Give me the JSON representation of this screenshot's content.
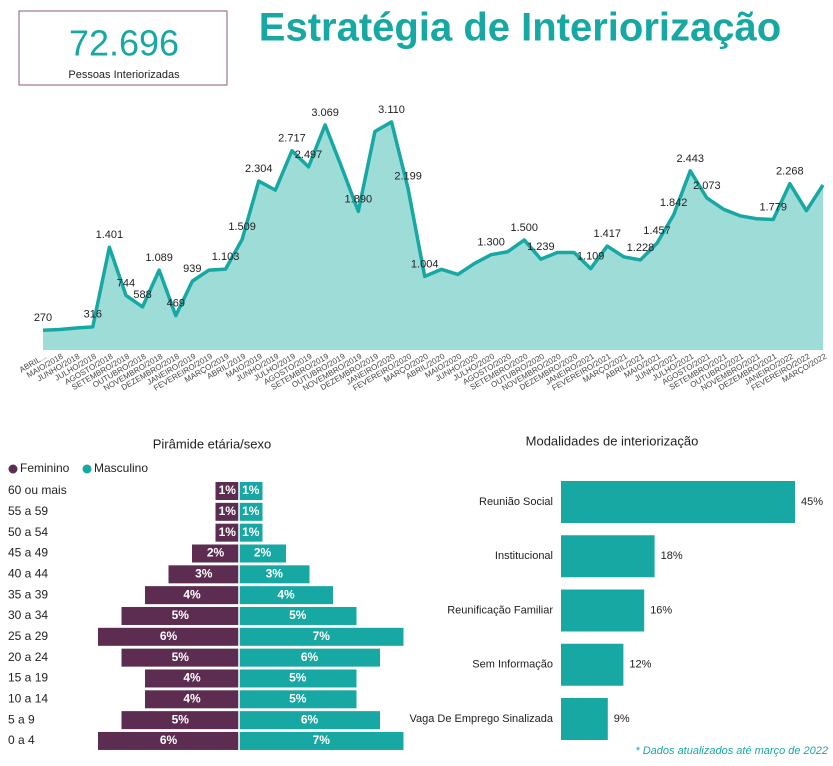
{
  "kpi": {
    "value": "72.696",
    "label": "Pessoas Interiorizadas"
  },
  "title": "Estratégia de Interiorização",
  "footnote": "* Dados atualizados até março de 2022",
  "chart_data": [
    {
      "type": "area",
      "color": "#17a8a3",
      "fill": "#9edcd8",
      "ylim": [
        0,
        3300
      ],
      "categories": [
        "ABRIL...",
        "MAIO/2018",
        "JUNHO/2018",
        "JULHO/2018",
        "AGOSTO/2018",
        "SETEMBRO/2018",
        "OUTUBRO/2018",
        "NOVEMBRO/2018",
        "DEZEMBRO/2018",
        "JANEIRO/2019",
        "FEVEREIRO/2019",
        "MARÇO/2019",
        "ABRIL/2019",
        "MAIO/2019",
        "JUNHO/2019",
        "JULHO/2019",
        "AGOSTO/2019",
        "SETEMBRO/2019",
        "OUTUBRO/2019",
        "NOVEMBRO/2019",
        "DEZEMBRO/2019",
        "JANEIRO/2020",
        "FEVEREIRO/2020",
        "MARÇO/2020",
        "ABRIL/2020",
        "MAIO/2020",
        "JUNHO/2020",
        "JULHO/2020",
        "AGOSTO/2020",
        "SETEMBRO/2020",
        "OUTUBRO/2020",
        "NOVEMBRO/2020",
        "DEZEMBRO/2020",
        "JANEIRO/2021",
        "FEVEREIRO/2021",
        "MARÇO/2021",
        "ABRIL/2021",
        "MAIO/2021",
        "JUNHO/2021",
        "JULHO/2021",
        "AGOSTO/2021",
        "SETEMBRO/2021",
        "OUTUBRO/2021",
        "NOVEMBRO/2021",
        "DEZEMBRO/2021",
        "JANEIRO/2022",
        "FEVEREIRO/2022",
        "MARÇO/2022"
      ],
      "values": [
        270,
        280,
        300,
        316,
        1401,
        744,
        588,
        1089,
        469,
        939,
        1090,
        1103,
        1509,
        2304,
        2180,
        2717,
        2497,
        3069,
        2490,
        1890,
        2980,
        3110,
        2199,
        1004,
        1100,
        1030,
        1180,
        1300,
        1340,
        1500,
        1239,
        1330,
        1330,
        1109,
        1417,
        1270,
        1228,
        1457,
        1842,
        2443,
        2073,
        1920,
        1830,
        1790,
        1779,
        2268,
        1900,
        2250
      ],
      "value_labels": [
        "270",
        null,
        null,
        "316",
        "1.401",
        "744",
        "588",
        "1.089",
        "469",
        "939",
        null,
        "1.103",
        "1.509",
        "2.304",
        null,
        "2.717",
        "2.497",
        "3.069",
        null,
        "1.890",
        null,
        "3.110",
        "2.199",
        "1.004",
        null,
        null,
        null,
        "1.300",
        null,
        "1.500",
        "1.239",
        null,
        null,
        "1.109",
        "1.417",
        null,
        "1.228",
        "1.457",
        "1.842",
        "2.443",
        "2.073",
        null,
        null,
        null,
        "1.779",
        "2.268",
        null,
        null
      ]
    },
    {
      "type": "pyramid",
      "title": "Pirâmide etária/sexo",
      "categories": [
        "60 ou mais",
        "55 a 59",
        "50 a 54",
        "45 a 49",
        "40 a 44",
        "35 a 39",
        "30 a 34",
        "25 a 29",
        "20 a 24",
        "15 a 19",
        "10 a 14",
        "5 a 9",
        "0 a 4"
      ],
      "series": [
        {
          "name": "Feminino",
          "color": "#5c2d50",
          "values": [
            1,
            1,
            1,
            2,
            3,
            4,
            5,
            6,
            5,
            4,
            4,
            5,
            6
          ],
          "value_labels": [
            "1%",
            "1%",
            "1%",
            "2%",
            "3%",
            "4%",
            "5%",
            "6%",
            "5%",
            "4%",
            "4%",
            "5%",
            "6%"
          ]
        },
        {
          "name": "Masculino",
          "color": "#17a8a3",
          "values": [
            1,
            1,
            1,
            2,
            3,
            4,
            5,
            7,
            6,
            5,
            5,
            6,
            7
          ],
          "value_labels": [
            "1%",
            "1%",
            "1%",
            "2%",
            "3%",
            "4%",
            "5%",
            "7%",
            "6%",
            "5%",
            "5%",
            "6%",
            "7%"
          ]
        }
      ]
    },
    {
      "type": "hbar",
      "title": "Modalidades de interiorização",
      "color": "#17a8a3",
      "categories": [
        "Reunião Social",
        "Institucional",
        "Reunificação Familiar",
        "Sem Informação",
        "Vaga De Emprego Sinalizada"
      ],
      "values": [
        45,
        18,
        16,
        12,
        9
      ],
      "value_labels": [
        "45%",
        "18%",
        "16%",
        "12%",
        "9%"
      ]
    }
  ]
}
